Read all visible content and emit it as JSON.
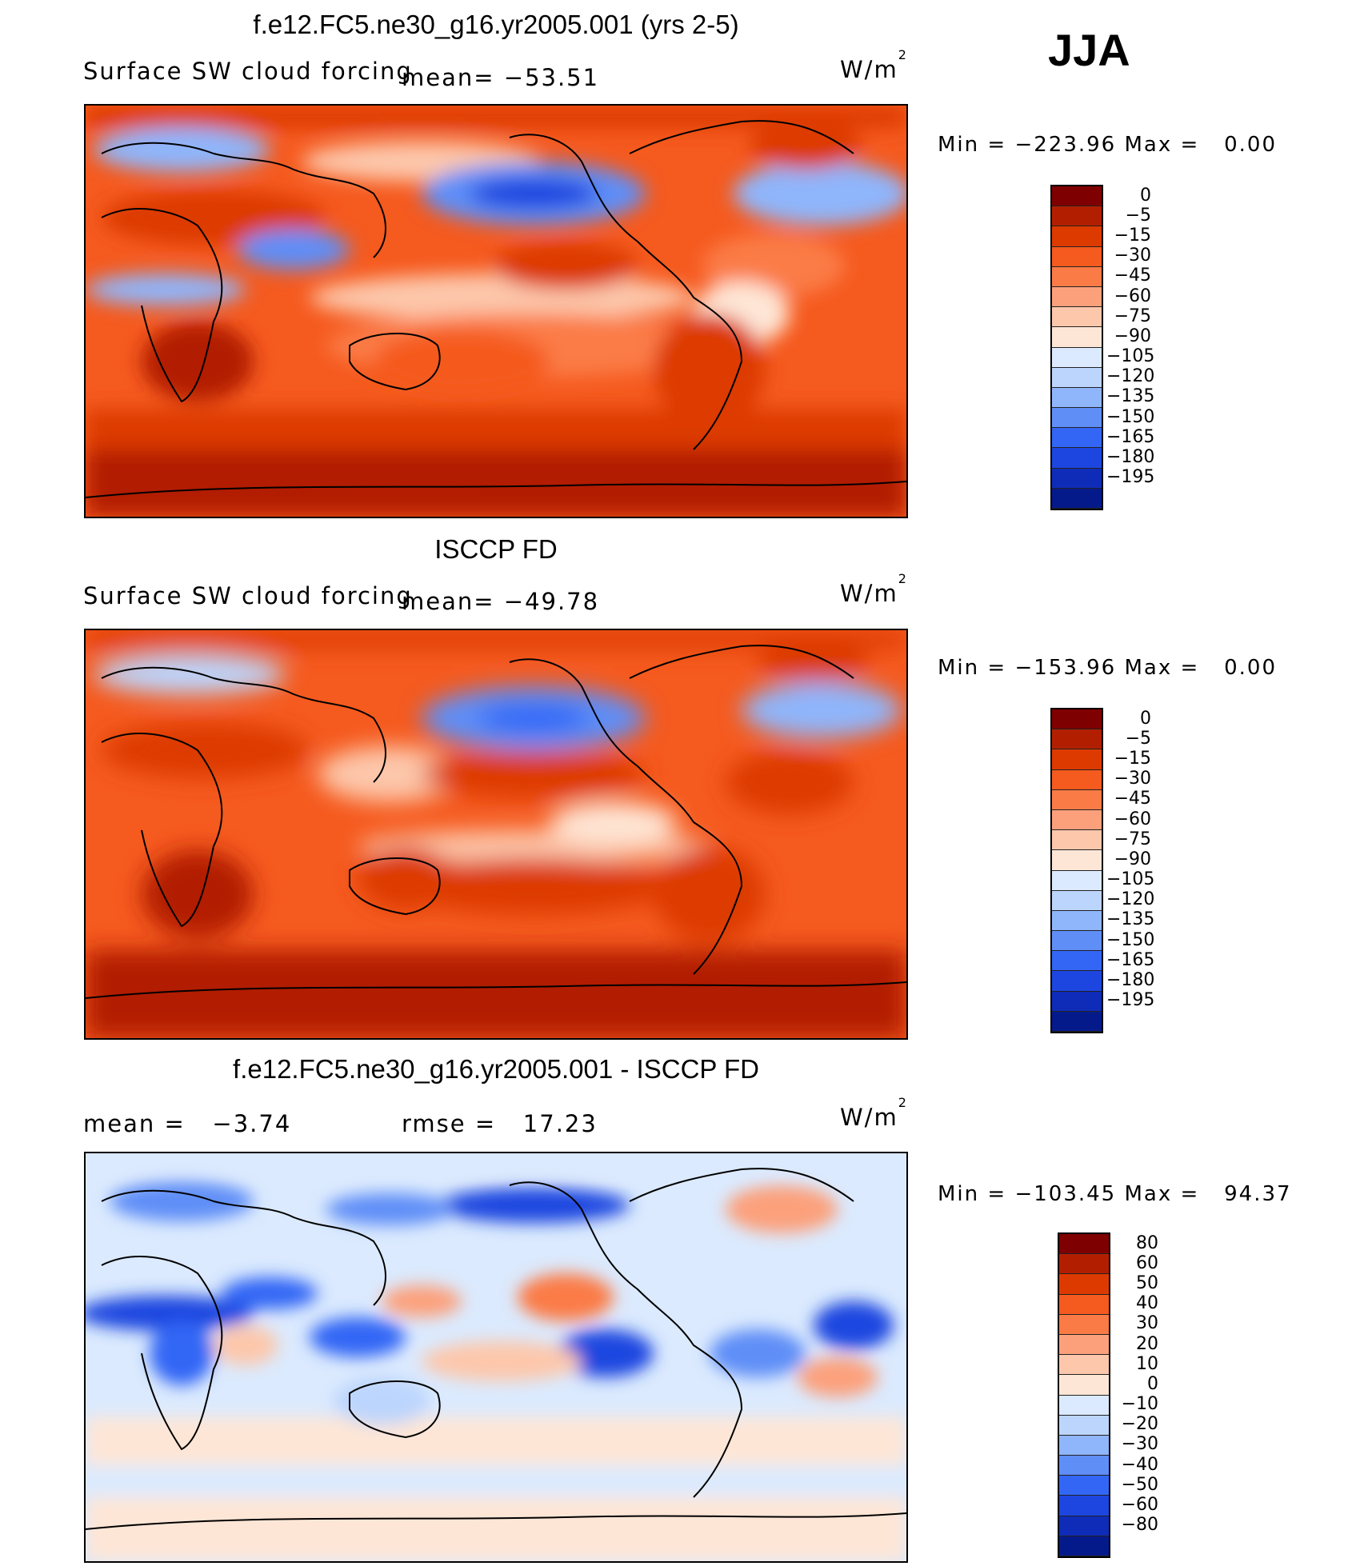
{
  "season": "JJA",
  "panels": [
    {
      "title": "f.e12.FC5.ne30_g16.yr2005.001 (yrs 2-5)",
      "left_label": "Surface SW cloud forcing",
      "center_label": "mean=",
      "center_value": "−53.51",
      "units_base": "W/m",
      "units_sup": "2",
      "min_label": "Min",
      "min_eq": "=",
      "min_value": "−223.96",
      "max_label": "Max",
      "max_eq": "=",
      "max_value": "0.00",
      "colorbar": {
        "colors": [
          "#7f0000",
          "#b21f00",
          "#dd3a00",
          "#f55a1e",
          "#fb7b46",
          "#fca07c",
          "#fdc7ab",
          "#fee6d6",
          "#dbeafe",
          "#bcd5fd",
          "#8fb5fb",
          "#5f8ef7",
          "#3366f5",
          "#1d46e0",
          "#0f2cb8",
          "#051a8a"
        ],
        "labels": [
          "0",
          "−5",
          "−15",
          "−30",
          "−45",
          "−60",
          "−75",
          "−90",
          "−105",
          "−120",
          "−135",
          "−150",
          "−165",
          "−180",
          "−195"
        ]
      }
    },
    {
      "title": "ISCCP FD",
      "left_label": "Surface SW cloud forcing",
      "center_label": "mean=",
      "center_value": "−49.78",
      "units_base": "W/m",
      "units_sup": "2",
      "min_label": "Min",
      "min_eq": "=",
      "min_value": "−153.96",
      "max_label": "Max",
      "max_eq": "=",
      "max_value": "0.00",
      "colorbar": {
        "colors": [
          "#7f0000",
          "#b21f00",
          "#dd3a00",
          "#f55a1e",
          "#fb7b46",
          "#fca07c",
          "#fdc7ab",
          "#fee6d6",
          "#dbeafe",
          "#bcd5fd",
          "#8fb5fb",
          "#5f8ef7",
          "#3366f5",
          "#1d46e0",
          "#0f2cb8",
          "#051a8a"
        ],
        "labels": [
          "0",
          "−5",
          "−15",
          "−30",
          "−45",
          "−60",
          "−75",
          "−90",
          "−105",
          "−120",
          "−135",
          "−150",
          "−165",
          "−180",
          "−195"
        ]
      }
    },
    {
      "title": "f.e12.FC5.ne30_g16.yr2005.001 - ISCCP FD",
      "left_label": "mean =",
      "left_value": "−3.74",
      "center_label": "rmse =",
      "center_value": "17.23",
      "units_base": "W/m",
      "units_sup": "2",
      "min_label": "Min",
      "min_eq": "=",
      "min_value": "−103.45",
      "max_label": "Max",
      "max_eq": "=",
      "max_value": "94.37",
      "colorbar": {
        "colors": [
          "#7f0000",
          "#b21f00",
          "#dd3a00",
          "#f55a1e",
          "#fb7b46",
          "#fca07c",
          "#fdc7ab",
          "#fee6d6",
          "#dbeafe",
          "#bcd5fd",
          "#8fb5fb",
          "#5f8ef7",
          "#3366f5",
          "#1d46e0",
          "#0f2cb8",
          "#051a8a"
        ],
        "labels": [
          "80",
          "60",
          "50",
          "40",
          "30",
          "20",
          "10",
          "0",
          "−10",
          "−20",
          "−30",
          "−40",
          "−50",
          "−60",
          "−80"
        ]
      }
    }
  ],
  "chart_data": [
    {
      "type": "heatmap",
      "title": "f.e12.FC5.ne30_g16.yr2005.001 (yrs 2-5)",
      "variable": "Surface SW cloud forcing",
      "units": "W/m2",
      "mean": -53.51,
      "min": -223.96,
      "max": 0.0,
      "contour_levels": [
        0,
        -5,
        -15,
        -30,
        -45,
        -60,
        -75,
        -90,
        -105,
        -120,
        -135,
        -150,
        -165,
        -180,
        -195
      ]
    },
    {
      "type": "heatmap",
      "title": "ISCCP FD",
      "variable": "Surface SW cloud forcing",
      "units": "W/m2",
      "mean": -49.78,
      "min": -153.96,
      "max": 0.0,
      "contour_levels": [
        0,
        -5,
        -15,
        -30,
        -45,
        -60,
        -75,
        -90,
        -105,
        -120,
        -135,
        -150,
        -165,
        -180,
        -195
      ]
    },
    {
      "type": "heatmap",
      "title": "f.e12.FC5.ne30_g16.yr2005.001 - ISCCP FD",
      "units": "W/m2",
      "mean": -3.74,
      "rmse": 17.23,
      "min": -103.45,
      "max": 94.37,
      "contour_levels": [
        80,
        60,
        50,
        40,
        30,
        20,
        10,
        0,
        -10,
        -20,
        -30,
        -40,
        -50,
        -60,
        -80
      ]
    }
  ]
}
